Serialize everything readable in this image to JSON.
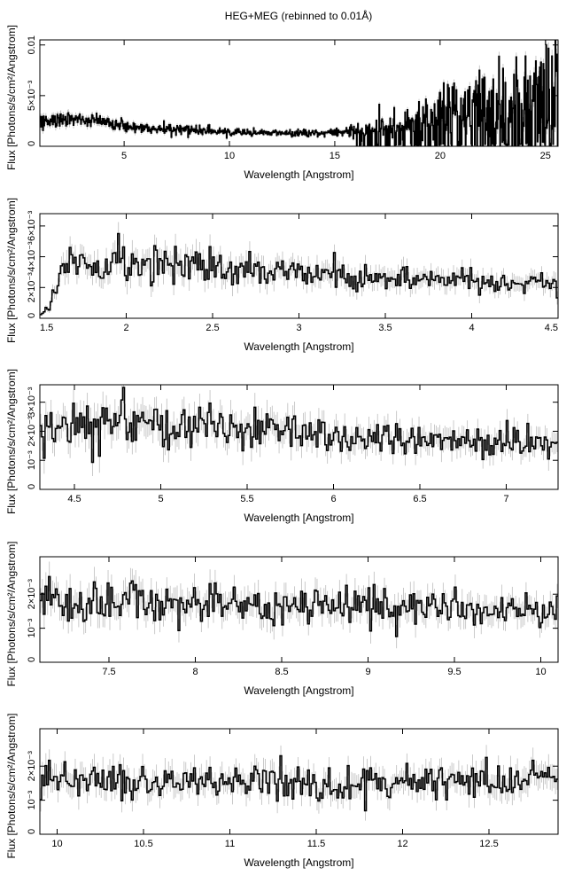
{
  "title": "HEG+MEG (rebinned to 0.01Å)",
  "colors": {
    "spectrum": "#000000",
    "error_bar": "#bdbdbd",
    "axis": "#000000"
  },
  "chart_data": [
    {
      "type": "line",
      "xlabel": "Wavelength [Angstrom]",
      "ylabel": "Flux [Photons/s/cm²/Angstrom]",
      "xlim": [
        1.0,
        25.6
      ],
      "ylim": [
        0,
        0.0105
      ],
      "xticks": [
        {
          "v": 5,
          "label": "5"
        },
        {
          "v": 10,
          "label": "10"
        },
        {
          "v": 15,
          "label": "15"
        },
        {
          "v": 20,
          "label": "20"
        },
        {
          "v": 25,
          "label": "25"
        }
      ],
      "yticks": [
        {
          "v": 0,
          "label": "0"
        },
        {
          "v": 0.005,
          "label": "5×10⁻³"
        },
        {
          "v": 0.01,
          "label": "0.01"
        }
      ],
      "series": [
        {
          "x": [
            1.5,
            2,
            3,
            4,
            5,
            6,
            7,
            8,
            9,
            10,
            11,
            12,
            13,
            14,
            15,
            16,
            17,
            18,
            19,
            20,
            21,
            22,
            23,
            24,
            25,
            25.5
          ],
          "y": [
            0.0025,
            0.0028,
            0.0026,
            0.0023,
            0.0021,
            0.0018,
            0.0017,
            0.0016,
            0.0015,
            0.0014,
            0.0013,
            0.0013,
            0.0013,
            0.0013,
            0.0014,
            0.0015,
            0.0017,
            0.002,
            0.0024,
            0.0028,
            0.0033,
            0.0036,
            0.004,
            0.0043,
            0.0045,
            0.0046
          ]
        }
      ],
      "peaks": [
        {
          "x": 19.0,
          "y": 0.0044
        },
        {
          "x": 20.0,
          "y": 0.0053
        },
        {
          "x": 21.6,
          "y": 0.0052
        },
        {
          "x": 22.1,
          "y": 0.0068
        },
        {
          "x": 24.8,
          "y": 0.0083
        },
        {
          "x": 25.5,
          "y": 0.0074
        }
      ]
    },
    {
      "type": "line",
      "xlabel": "Wavelength [Angstrom]",
      "ylabel": "Flux [Photons/s/cm²/Angstrom]",
      "xlim": [
        1.5,
        4.5
      ],
      "ylim": [
        0,
        0.0068
      ],
      "xticks": [
        {
          "v": 1.5,
          "label": "1.5"
        },
        {
          "v": 2,
          "label": "2"
        },
        {
          "v": 2.5,
          "label": "2.5"
        },
        {
          "v": 3,
          "label": "3"
        },
        {
          "v": 3.5,
          "label": "3.5"
        },
        {
          "v": 4,
          "label": "4"
        },
        {
          "v": 4.5,
          "label": "4.5"
        }
      ],
      "yticks": [
        {
          "v": 0,
          "label": "0"
        },
        {
          "v": 0.002,
          "label": "2×10⁻³"
        },
        {
          "v": 0.004,
          "label": "4×10⁻³"
        },
        {
          "v": 0.006,
          "label": "6×10⁻³"
        }
      ],
      "series": [
        {
          "x": [
            1.5,
            1.55,
            1.6,
            1.65,
            1.7,
            1.8,
            1.9,
            2.0,
            2.2,
            2.4,
            2.6,
            2.8,
            3.0,
            3.2,
            3.4,
            3.6,
            3.8,
            4.0,
            4.2,
            4.5
          ],
          "y": [
            0.0002,
            0.0008,
            0.0022,
            0.0038,
            0.0035,
            0.0032,
            0.0034,
            0.0036,
            0.0033,
            0.0034,
            0.003,
            0.0031,
            0.0029,
            0.0028,
            0.0026,
            0.0027,
            0.0025,
            0.0024,
            0.0023,
            0.0023
          ]
        }
      ]
    },
    {
      "type": "line",
      "xlabel": "Wavelength [Angstrom]",
      "ylabel": "Flux [Photons/s/cm²/Angstrom]",
      "xlim": [
        4.3,
        7.3
      ],
      "ylim": [
        0,
        0.0036
      ],
      "xticks": [
        {
          "v": 4.5,
          "label": "4.5"
        },
        {
          "v": 5,
          "label": "5"
        },
        {
          "v": 5.5,
          "label": "5.5"
        },
        {
          "v": 6,
          "label": "6"
        },
        {
          "v": 6.5,
          "label": "6.5"
        },
        {
          "v": 7,
          "label": "7"
        }
      ],
      "yticks": [
        {
          "v": 0,
          "label": "0"
        },
        {
          "v": 0.001,
          "label": "10⁻³"
        },
        {
          "v": 0.002,
          "label": "2×10⁻³"
        },
        {
          "v": 0.003,
          "label": "3×10⁻³"
        }
      ],
      "series": [
        {
          "x": [
            4.3,
            4.5,
            4.7,
            4.9,
            5.1,
            5.3,
            5.5,
            5.7,
            5.9,
            6.1,
            6.3,
            6.5,
            6.7,
            6.9,
            7.1,
            7.3
          ],
          "y": [
            0.0021,
            0.0022,
            0.0023,
            0.0023,
            0.0021,
            0.0021,
            0.002,
            0.002,
            0.0019,
            0.0018,
            0.0018,
            0.0017,
            0.0017,
            0.0016,
            0.0016,
            0.0016
          ]
        }
      ]
    },
    {
      "type": "line",
      "xlabel": "Wavelength [Angstrom]",
      "ylabel": "Flux [Photons/s/cm²/Angstrom]",
      "xlim": [
        7.1,
        10.1
      ],
      "ylim": [
        0,
        0.0031
      ],
      "xticks": [
        {
          "v": 7.5,
          "label": "7.5"
        },
        {
          "v": 8,
          "label": "8"
        },
        {
          "v": 8.5,
          "label": "8.5"
        },
        {
          "v": 9,
          "label": "9"
        },
        {
          "v": 9.5,
          "label": "9.5"
        },
        {
          "v": 10,
          "label": "10"
        }
      ],
      "yticks": [
        {
          "v": 0,
          "label": "0"
        },
        {
          "v": 0.001,
          "label": "10⁻³"
        },
        {
          "v": 0.002,
          "label": "2×10⁻³"
        }
      ],
      "series": [
        {
          "x": [
            7.1,
            7.5,
            8.0,
            8.5,
            9.0,
            9.5,
            10.1
          ],
          "y": [
            0.0018,
            0.0018,
            0.0017,
            0.0017,
            0.0016,
            0.0016,
            0.0015
          ]
        }
      ]
    },
    {
      "type": "line",
      "xlabel": "Wavelength [Angstrom]",
      "ylabel": "Flux [Photons/s/cm²/Angstrom]",
      "xlim": [
        9.9,
        12.9
      ],
      "ylim": [
        0,
        0.0031
      ],
      "xticks": [
        {
          "v": 10,
          "label": "10"
        },
        {
          "v": 10.5,
          "label": "10.5"
        },
        {
          "v": 11,
          "label": "11"
        },
        {
          "v": 11.5,
          "label": "11.5"
        },
        {
          "v": 12,
          "label": "12"
        },
        {
          "v": 12.5,
          "label": "12.5"
        }
      ],
      "yticks": [
        {
          "v": 0,
          "label": "0"
        },
        {
          "v": 0.001,
          "label": "10⁻³"
        },
        {
          "v": 0.002,
          "label": "2×10⁻³"
        }
      ],
      "series": [
        {
          "x": [
            9.9,
            10.5,
            11.0,
            11.5,
            12.0,
            12.5,
            12.9
          ],
          "y": [
            0.0016,
            0.0016,
            0.0015,
            0.0015,
            0.0015,
            0.0016,
            0.0016
          ]
        }
      ]
    }
  ]
}
